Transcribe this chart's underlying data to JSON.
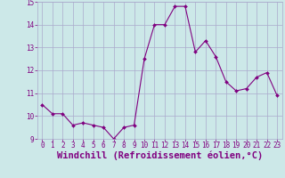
{
  "x": [
    0,
    1,
    2,
    3,
    4,
    5,
    6,
    7,
    8,
    9,
    10,
    11,
    12,
    13,
    14,
    15,
    16,
    17,
    18,
    19,
    20,
    21,
    22,
    23
  ],
  "y": [
    10.5,
    10.1,
    10.1,
    9.6,
    9.7,
    9.6,
    9.5,
    9.0,
    9.5,
    9.6,
    12.5,
    14.0,
    14.0,
    14.8,
    14.8,
    12.8,
    13.3,
    12.6,
    11.5,
    11.1,
    11.2,
    11.7,
    11.9,
    10.9
  ],
  "line_color": "#800080",
  "marker": "D",
  "marker_size": 2,
  "bg_color": "#cce8e8",
  "grid_color": "#aaaacc",
  "xlabel": "Windchill (Refroidissement éolien,°C)",
  "xlabel_color": "#800080",
  "ylim": [
    9,
    15
  ],
  "xlim": [
    -0.5,
    23.5
  ],
  "yticks": [
    9,
    10,
    11,
    12,
    13,
    14,
    15
  ],
  "xticks": [
    0,
    1,
    2,
    3,
    4,
    5,
    6,
    7,
    8,
    9,
    10,
    11,
    12,
    13,
    14,
    15,
    16,
    17,
    18,
    19,
    20,
    21,
    22,
    23
  ],
  "tick_label_fontsize": 5.5,
  "xlabel_fontsize": 7.5
}
